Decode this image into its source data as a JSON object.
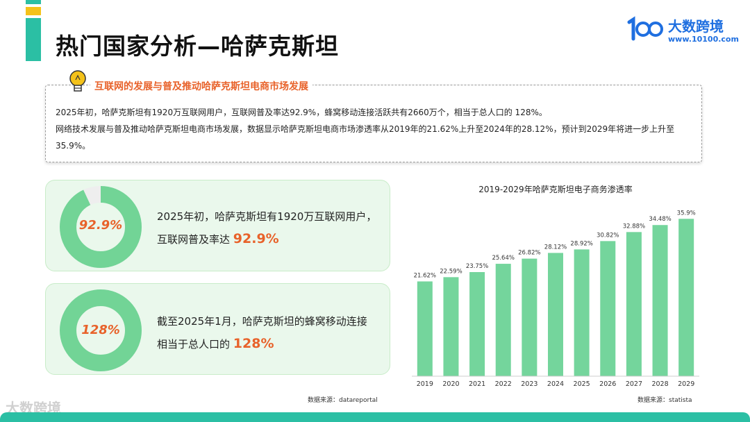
{
  "page": {
    "title": "热门国家分析—哈萨克斯坦"
  },
  "logo": {
    "text": "大数跨境",
    "url": "www.10100.com"
  },
  "section": {
    "heading": "互联网的发展与普及推动哈萨克斯坦电商市场发展",
    "line1": "2025年初，哈萨克斯坦有1920万互联网用户，互联网普及率达92.9%，蜂窝移动连接活跃共有2660万个，相当于总人口的 128%。",
    "line2": "网络技术发展与普及推动哈萨克斯坦电商市场发展，数据显示哈萨克斯坦电商市场渗透率从2019年的21.62%上升至2024年的28.12%，预计到2029年将进一步上升至35.9%。"
  },
  "cards": [
    {
      "donut_label": "92.9%",
      "donut_fraction": 0.929,
      "text_line1": "2025年初，哈萨克斯坦有1920万互联网用户，",
      "text_line2_prefix": "互联网普及率达",
      "text_highlight": "92.9%"
    },
    {
      "donut_label": "128%",
      "donut_fraction": 1.0,
      "text_line1": "截至2025年1月，哈萨克斯坦的蜂窝移动连接",
      "text_line2_prefix": "相当于总人口的",
      "text_highlight": "128%"
    }
  ],
  "sources": {
    "left": "数据来源：datareportal",
    "right": "数据来源：statista"
  },
  "watermark": "大数跨境",
  "colors": {
    "accent": "#e8622a",
    "teal": "#2bbfa4",
    "bar": "#74d59c",
    "donut": "#72d496",
    "donut_rest": "#eeeeee",
    "brand": "#1f6fe0"
  },
  "chart_data": {
    "type": "bar",
    "title": "2019-2029年哈萨克斯坦电子商务渗透率",
    "categories": [
      "2019",
      "2020",
      "2021",
      "2022",
      "2023",
      "2024",
      "2025",
      "2026",
      "2027",
      "2028",
      "2029"
    ],
    "values": [
      21.62,
      22.59,
      23.75,
      25.64,
      26.82,
      28.12,
      28.92,
      30.82,
      32.88,
      34.48,
      35.9
    ],
    "data_labels": [
      "21.62%",
      "22.59%",
      "23.75%",
      "25.64%",
      "26.82%",
      "28.12%",
      "28.92%",
      "30.82%",
      "32.88%",
      "34.48%",
      "35.9%"
    ],
    "xlabel": "",
    "ylabel": "",
    "ylim": [
      0,
      38
    ],
    "grid": false
  }
}
